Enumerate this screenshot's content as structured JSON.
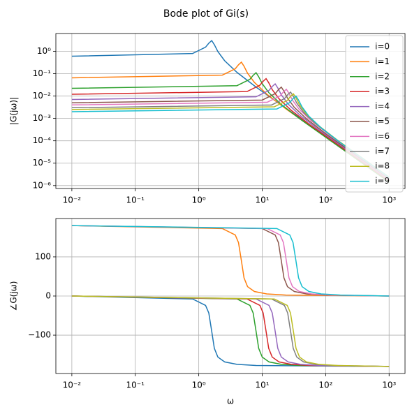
{
  "title": "Bode plot of Gi(s)",
  "chart_data": [
    {
      "type": "line",
      "xlog": true,
      "ylog": true,
      "grid": true,
      "legend": "upper right",
      "ylabel": "|G(jω)|",
      "xlim": [
        0.0056,
        1780
      ],
      "ylim": [
        7.4e-07,
        6.2
      ],
      "xticks": [
        {
          "value": 0.01,
          "label": "10⁻²"
        },
        {
          "value": 0.1,
          "label": "10⁻¹"
        },
        {
          "value": 1,
          "label": "10⁰"
        },
        {
          "value": 10,
          "label": "10¹"
        },
        {
          "value": 100,
          "label": "10²"
        },
        {
          "value": 1000,
          "label": "10³"
        }
      ],
      "yticks": [
        {
          "value": 1e-06,
          "label": "10⁻⁶"
        },
        {
          "value": 1e-05,
          "label": "10⁻⁵"
        },
        {
          "value": 0.0001,
          "label": "10⁻⁴"
        },
        {
          "value": 0.001,
          "label": "10⁻³"
        },
        {
          "value": 0.01,
          "label": "10⁻²"
        },
        {
          "value": 0.1,
          "label": "10⁻¹"
        },
        {
          "value": 1,
          "label": "10⁰"
        }
      ],
      "series": [
        {
          "name": "i=0",
          "color": "#1f77b4",
          "x": [
            0.01,
            0.8,
            1.28,
            1.44,
            1.6,
            1.76,
            2.0,
            2.56,
            4,
            8,
            1000
          ],
          "values": [
            0.6,
            0.792,
            1.524,
            2.29,
            3.0,
            1.97,
            0.972,
            0.377,
            0.114,
            0.025,
            1.54e-06
          ]
        },
        {
          "name": "i=1",
          "color": "#ff7f0e",
          "x": [
            0.01,
            2.35,
            3.76,
            4.23,
            4.7,
            5.17,
            5.875,
            7.52,
            11.75,
            23.5,
            1000
          ],
          "values": [
            0.065,
            0.0858,
            0.165,
            0.248,
            0.325,
            0.214,
            0.105,
            0.0408,
            0.0123,
            0.0027,
            1.44e-06
          ]
        },
        {
          "name": "i=2",
          "color": "#2ca02c",
          "x": [
            0.01,
            4,
            6.4,
            7.2,
            8,
            8.8,
            10,
            12.8,
            20,
            40,
            1000
          ],
          "values": [
            0.022,
            0.029,
            0.0559,
            0.084,
            0.11,
            0.0724,
            0.0356,
            0.0138,
            0.00417,
            0.000915,
            1.41e-06
          ]
        },
        {
          "name": "i=3",
          "color": "#d62728",
          "x": [
            0.01,
            5.75,
            9.2,
            10.35,
            11.5,
            12.65,
            14.375,
            18.4,
            28.75,
            57.5,
            1000
          ],
          "values": [
            0.012,
            0.0158,
            0.0305,
            0.0458,
            0.06,
            0.0395,
            0.0194,
            0.00754,
            0.00228,
            0.000499,
            1.59e-06
          ]
        },
        {
          "name": "i=4",
          "color": "#9467bd",
          "x": [
            0.01,
            8,
            12.8,
            14.4,
            16,
            17.6,
            20,
            25.6,
            40,
            80,
            1000
          ],
          "values": [
            0.007,
            0.00924,
            0.0178,
            0.0267,
            0.035,
            0.023,
            0.0113,
            0.0044,
            0.00133,
            0.000291,
            1.79e-06
          ]
        },
        {
          "name": "i=5",
          "color": "#8c564b",
          "x": [
            0.01,
            10,
            16,
            18,
            20,
            22,
            25,
            32,
            50,
            100,
            1000
          ],
          "values": [
            0.005,
            0.0066,
            0.0127,
            0.0191,
            0.025,
            0.0165,
            0.0081,
            0.00314,
            0.000948,
            0.000208,
            2e-06
          ]
        },
        {
          "name": "i=6",
          "color": "#e377c2",
          "x": [
            0.01,
            12,
            19.2,
            21.6,
            24,
            26.4,
            30,
            38.4,
            60,
            120,
            1000
          ],
          "values": [
            0.004,
            0.00528,
            0.0102,
            0.0153,
            0.02,
            0.0132,
            0.00648,
            0.00251,
            0.000758,
            0.000166,
            2.3e-06
          ]
        },
        {
          "name": "i=7",
          "color": "#7f7f7f",
          "x": [
            0.01,
            14,
            22.4,
            25.2,
            28,
            30.8,
            35,
            44.8,
            70,
            140,
            1000
          ],
          "values": [
            0.003,
            0.00396,
            0.00762,
            0.0115,
            0.015,
            0.00987,
            0.00486,
            0.00188,
            0.000569,
            0.000125,
            2.35e-06
          ]
        },
        {
          "name": "i=8",
          "color": "#bcbd22",
          "x": [
            0.01,
            15.5,
            24.8,
            27.9,
            31,
            34.1,
            38.75,
            49.6,
            77.5,
            155,
            1000
          ],
          "values": [
            0.0025,
            0.0033,
            0.00635,
            0.00955,
            0.0125,
            0.00823,
            0.00405,
            0.00157,
            0.000474,
            0.000104,
            2.4e-06
          ]
        },
        {
          "name": "i=9",
          "color": "#17becf",
          "x": [
            0.01,
            17,
            27.2,
            30.6,
            34,
            37.4,
            42.5,
            54.4,
            85,
            170,
            1000
          ],
          "values": [
            0.002,
            0.00264,
            0.00508,
            0.00764,
            0.01,
            0.00658,
            0.00324,
            0.00126,
            0.000379,
            8.32e-05,
            2.31e-06
          ]
        }
      ]
    },
    {
      "type": "line",
      "xlog": true,
      "ylog": false,
      "grid": true,
      "ylabel": "∠G(jω)",
      "xlabel": "ω",
      "xlim": [
        0.0056,
        1780
      ],
      "ylim": [
        -198,
        198
      ],
      "xticks": [
        {
          "value": 0.01,
          "label": "10⁻²"
        },
        {
          "value": 0.1,
          "label": "10⁻¹"
        },
        {
          "value": 1,
          "label": "10⁰"
        },
        {
          "value": 10,
          "label": "10¹"
        },
        {
          "value": 100,
          "label": "10²"
        },
        {
          "value": 1000,
          "label": "10³"
        }
      ],
      "yticks": [
        {
          "value": -100,
          "label": "−100"
        },
        0,
        100
      ],
      "series": [
        {
          "color": "#1f77b4",
          "x": [
            0.01,
            0.8,
            1.28,
            1.44,
            1.6,
            1.76,
            2.0,
            2.56,
            4,
            8,
            1000
          ],
          "values": [
            0,
            -7.6,
            -24,
            -43.5,
            -90,
            -133.7,
            -156,
            -168.4,
            -174.6,
            -177.6,
            -180
          ]
        },
        {
          "color": "#ff7f0e",
          "x": [
            0.01,
            2.35,
            3.76,
            4.23,
            4.7,
            5.17,
            5.875,
            7.52,
            11.75,
            23.5,
            1000
          ],
          "values": [
            180,
            172.4,
            156,
            136.5,
            90,
            46.3,
            24,
            11.6,
            5.4,
            2.4,
            0
          ]
        },
        {
          "color": "#2ca02c",
          "x": [
            0.01,
            4,
            6.4,
            7.2,
            8,
            8.8,
            10,
            12.8,
            20,
            40,
            1000
          ],
          "values": [
            0,
            -7.6,
            -24,
            -43.5,
            -90,
            -133.7,
            -156,
            -168.4,
            -174.6,
            -177.6,
            -180
          ]
        },
        {
          "color": "#d62728",
          "x": [
            0.01,
            5.75,
            9.2,
            10.35,
            11.5,
            12.65,
            14.375,
            18.4,
            28.75,
            57.5,
            1000
          ],
          "values": [
            0,
            -7.6,
            -24,
            -43.5,
            -90,
            -133.7,
            -156,
            -168.4,
            -174.6,
            -177.6,
            -180
          ]
        },
        {
          "color": "#9467bd",
          "x": [
            0.01,
            8,
            12.8,
            14.4,
            16,
            17.6,
            20,
            25.6,
            40,
            80,
            1000
          ],
          "values": [
            0,
            -7.6,
            -24,
            -43.5,
            -90,
            -133.7,
            -156,
            -168.4,
            -174.6,
            -177.6,
            -180
          ]
        },
        {
          "color": "#8c564b",
          "x": [
            0.01,
            10,
            16,
            18,
            20,
            22,
            25,
            32,
            50,
            100,
            1000
          ],
          "values": [
            180,
            172.4,
            156,
            136.5,
            90,
            46.3,
            24,
            11.6,
            5.4,
            2.4,
            0
          ]
        },
        {
          "color": "#e377c2",
          "x": [
            0.01,
            12,
            19.2,
            21.6,
            24,
            26.4,
            30,
            38.4,
            60,
            120,
            1000
          ],
          "values": [
            180,
            172.4,
            156,
            136.5,
            90,
            46.3,
            24,
            11.6,
            5.4,
            2.4,
            0
          ]
        },
        {
          "color": "#7f7f7f",
          "x": [
            0.01,
            14,
            22.4,
            25.2,
            28,
            30.8,
            35,
            44.8,
            70,
            140,
            1000
          ],
          "values": [
            0,
            -7.6,
            -24,
            -43.5,
            -90,
            -133.7,
            -156,
            -168.4,
            -174.6,
            -177.6,
            -180
          ]
        },
        {
          "color": "#bcbd22",
          "x": [
            0.01,
            15.5,
            24.8,
            27.9,
            31,
            34.1,
            38.75,
            49.6,
            77.5,
            155,
            1000
          ],
          "values": [
            0,
            -7.6,
            -24,
            -43.5,
            -90,
            -133.7,
            -156,
            -168.4,
            -174.6,
            -177.6,
            -180
          ]
        },
        {
          "color": "#17becf",
          "x": [
            0.01,
            17,
            27.2,
            30.6,
            34,
            37.4,
            42.5,
            54.4,
            85,
            170,
            1000
          ],
          "values": [
            180,
            172.4,
            156,
            136.5,
            90,
            46.3,
            24,
            11.6,
            5.4,
            2.4,
            0
          ]
        }
      ]
    }
  ]
}
